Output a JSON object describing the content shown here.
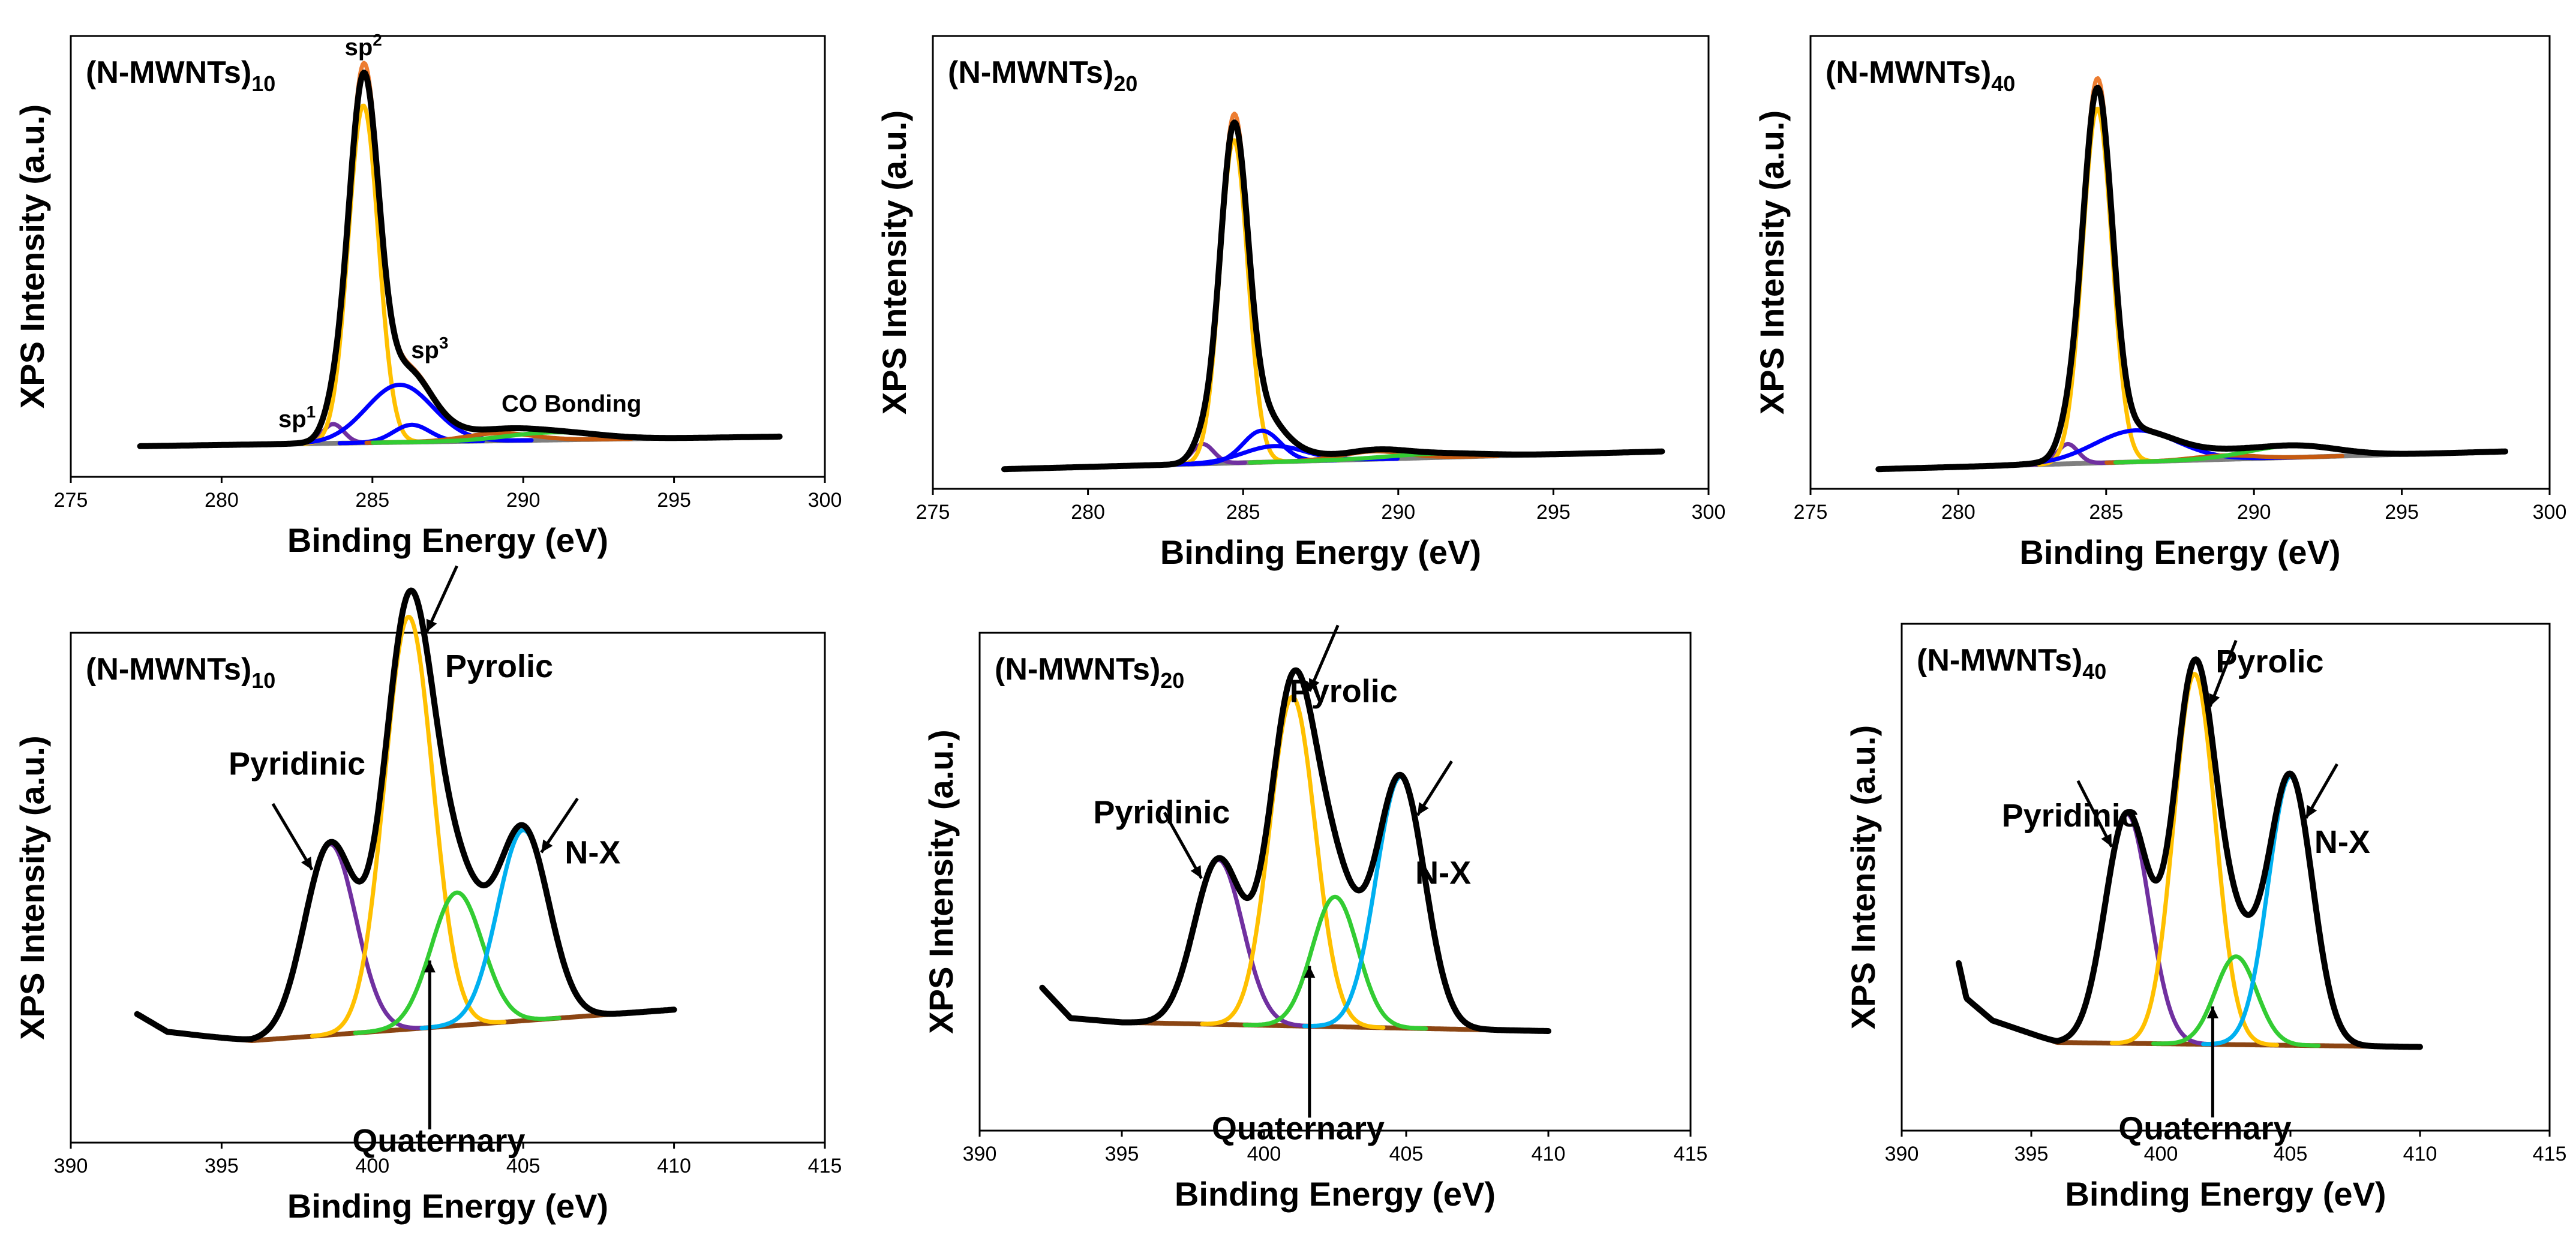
{
  "colors": {
    "envelope": "#000000",
    "raw": "#ED7D31",
    "sp2_pyrolic": "#FFC000",
    "sp1_pyridinic": "#7030A0",
    "sp3": "#0000FF",
    "co": "#C55A11",
    "quaternary": "#33CC33",
    "nx": "#00B0F0",
    "background": "#7F7F7F",
    "nbackground": "#8B4513"
  },
  "chart_data": [
    {
      "type": "line",
      "title": "(N-MWNTs)",
      "title_sub": "10",
      "xlabel": "Binding Energy (eV)",
      "ylabel": "XPS Intensity (a.u.)",
      "xlim": [
        275,
        300
      ],
      "xticks": [
        "275",
        "280",
        "285",
        "290",
        "295",
        "300"
      ],
      "x_range": [
        277.3,
        298.5
      ],
      "baseline": [
        0.03,
        0.055
      ],
      "peaks": [
        {
          "component": "sp1",
          "center": 283.7,
          "height": 0.05,
          "width": 0.35
        },
        {
          "component": "sp2",
          "center": 284.7,
          "height": 0.88,
          "width": 0.5
        },
        {
          "component": "sp3",
          "center": 285.9,
          "height": 0.15,
          "width": 1.1
        },
        {
          "component": "sp3_b",
          "center": 286.3,
          "height": 0.045,
          "width": 0.6
        },
        {
          "component": "co",
          "center": 289.2,
          "height": 0.02,
          "width": 1.1
        },
        {
          "component": "co_b",
          "center": 291.0,
          "height": 0.02,
          "width": 1.5
        }
      ],
      "annotations": [
        {
          "text": "sp",
          "sup": "2",
          "x": 284.7,
          "level": 1.05
        },
        {
          "text": "sp",
          "sup": "3",
          "x": 286.9,
          "level": 0.26
        },
        {
          "text": "sp",
          "sup": "1",
          "x": 282.5,
          "level": 0.08
        },
        {
          "text": "CO Bonding",
          "sup": "",
          "x": 291.6,
          "level": 0.12
        }
      ]
    },
    {
      "type": "line",
      "title": "(N-MWNTs)",
      "title_sub": "20",
      "xlabel": "Binding Energy (eV)",
      "ylabel": "XPS Intensity (a.u.)",
      "xlim": [
        275,
        300
      ],
      "xticks": [
        "275",
        "280",
        "285",
        "290",
        "295",
        "300"
      ],
      "x_range": [
        277.3,
        298.5
      ],
      "baseline": [
        0.0,
        0.045
      ],
      "peaks": [
        {
          "component": "sp1",
          "center": 283.7,
          "height": 0.05,
          "width": 0.35
        },
        {
          "component": "sp2",
          "center": 284.7,
          "height": 0.82,
          "width": 0.45
        },
        {
          "component": "sp3",
          "center": 285.6,
          "height": 0.08,
          "width": 0.6
        },
        {
          "component": "sp3_b",
          "center": 286.0,
          "height": 0.04,
          "width": 1.0
        },
        {
          "component": "co",
          "center": 289.2,
          "height": 0.02,
          "width": 1.0
        },
        {
          "component": "co_b",
          "center": 291.2,
          "height": 0.01,
          "width": 1.5
        }
      ],
      "annotations": []
    },
    {
      "type": "line",
      "title": "(N-MWNTs)",
      "title_sub": "40",
      "xlabel": "Binding Energy (eV)",
      "ylabel": "XPS Intensity (a.u.)",
      "xlim": [
        275,
        300
      ],
      "xticks": [
        "275",
        "280",
        "285",
        "290",
        "295",
        "300"
      ],
      "x_range": [
        277.3,
        298.5
      ],
      "baseline": [
        0.0,
        0.045
      ],
      "peaks": [
        {
          "component": "sp1",
          "center": 283.7,
          "height": 0.05,
          "width": 0.35
        },
        {
          "component": "sp2",
          "center": 284.7,
          "height": 0.9,
          "width": 0.5
        },
        {
          "component": "sp3",
          "center": 286.0,
          "height": 0.08,
          "width": 1.4
        },
        {
          "component": "co",
          "center": 289.0,
          "height": 0.01,
          "width": 1.0
        },
        {
          "component": "co_b",
          "center": 291.3,
          "height": 0.03,
          "width": 1.5
        }
      ],
      "annotations": []
    },
    {
      "type": "line",
      "title": "(N-MWNTs)",
      "title_sub": "10",
      "xlabel": "Binding Energy (eV)",
      "ylabel": "XPS Intensity (a.u.)",
      "xlim": [
        390,
        415
      ],
      "xticks": [
        "390",
        "395",
        "400",
        "405",
        "410",
        "415"
      ],
      "x_range": [
        392.2,
        410.0
      ],
      "baseline_pts": [
        [
          392.2,
          0.24
        ],
        [
          393.2,
          0.2
        ],
        [
          394.5,
          0.19
        ],
        [
          396.0,
          0.18
        ],
        [
          410.0,
          0.25
        ]
      ],
      "peaks": [
        {
          "component": "pyridinic",
          "center": 398.6,
          "height": 0.43,
          "width": 0.85
        },
        {
          "component": "pyrolic",
          "center": 401.2,
          "height": 0.93,
          "width": 0.8
        },
        {
          "component": "quaternary",
          "center": 402.8,
          "height": 0.3,
          "width": 0.85
        },
        {
          "component": "nx",
          "center": 405.0,
          "height": 0.43,
          "width": 0.85
        }
      ],
      "annotations": [
        {
          "text": "Pyridinic",
          "x": 397.5,
          "level": 0.78
        },
        {
          "text": "Pyrolic",
          "x": 404.2,
          "level": 1.0
        },
        {
          "text": "N-X",
          "x": 407.3,
          "level": 0.58
        },
        {
          "text": "Quaternary",
          "x": 402.2,
          "level": -0.07
        }
      ]
    },
    {
      "type": "line",
      "title": "(N-MWNTs)",
      "title_sub": "20",
      "xlabel": "Binding Energy (eV)",
      "ylabel": "XPS Intensity (a.u.)",
      "xlim": [
        390,
        415
      ],
      "xticks": [
        "390",
        "395",
        "400",
        "405",
        "410",
        "415"
      ],
      "x_range": [
        392.2,
        410.0
      ],
      "baseline_pts": [
        [
          392.2,
          0.28
        ],
        [
          393.2,
          0.21
        ],
        [
          395.0,
          0.2
        ],
        [
          410.0,
          0.18
        ]
      ],
      "peaks": [
        {
          "component": "pyridinic",
          "center": 398.4,
          "height": 0.38,
          "width": 0.85
        },
        {
          "component": "pyrolic",
          "center": 401.0,
          "height": 0.76,
          "width": 0.8
        },
        {
          "component": "quaternary",
          "center": 402.5,
          "height": 0.3,
          "width": 0.8
        },
        {
          "component": "nx",
          "center": 404.8,
          "height": 0.58,
          "width": 0.85
        }
      ],
      "annotations": [
        {
          "text": "Pyridinic",
          "x": 396.4,
          "level": 0.66
        },
        {
          "text": "Pyrolic",
          "x": 402.8,
          "level": 0.94
        },
        {
          "text": "N-X",
          "x": 406.3,
          "level": 0.52
        },
        {
          "text": "Quaternary",
          "x": 401.2,
          "level": -0.07
        }
      ]
    },
    {
      "type": "line",
      "title": "(N-MWNTs)",
      "title_sub": "40",
      "xlabel": "Binding Energy (eV)",
      "ylabel": "XPS Intensity (a.u.)",
      "xlim": [
        390,
        415
      ],
      "xticks": [
        "390",
        "395",
        "400",
        "405",
        "410",
        "415"
      ],
      "x_range": [
        392.2,
        410.0
      ],
      "baseline_pts": [
        [
          392.2,
          0.33
        ],
        [
          392.5,
          0.25
        ],
        [
          393.5,
          0.2
        ],
        [
          396.0,
          0.15
        ],
        [
          410.0,
          0.14
        ],
        [
          410.0,
          0.07
        ]
      ],
      "peaks": [
        {
          "component": "pyridinic",
          "center": 398.7,
          "height": 0.52,
          "width": 0.85
        },
        {
          "component": "pyrolic",
          "center": 401.3,
          "height": 0.84,
          "width": 0.8
        },
        {
          "component": "quaternary",
          "center": 402.9,
          "height": 0.2,
          "width": 0.8
        },
        {
          "component": "nx",
          "center": 405.0,
          "height": 0.61,
          "width": 0.85
        }
      ],
      "annotations": [
        {
          "text": "Pyridinic",
          "x": 396.5,
          "level": 0.64
        },
        {
          "text": "Pyrolic",
          "x": 404.2,
          "level": 0.99
        },
        {
          "text": "N-X",
          "x": 407.0,
          "level": 0.58
        },
        {
          "text": "Quaternary",
          "x": 401.7,
          "level": -0.07
        }
      ]
    }
  ]
}
